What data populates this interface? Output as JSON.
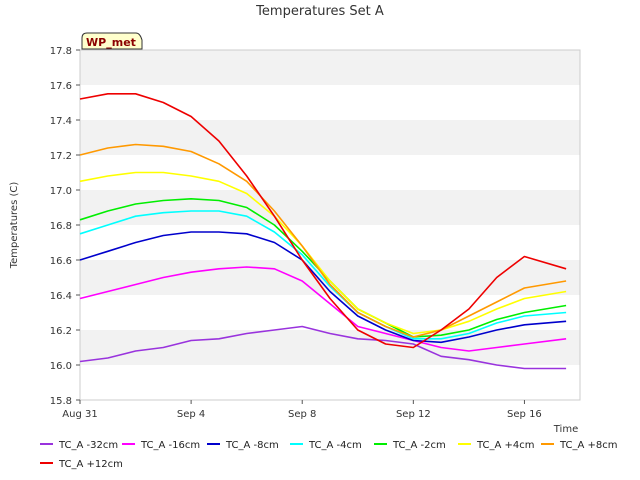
{
  "chart_data": {
    "type": "line",
    "title": "Temperatures Set A",
    "xlabel": "Time",
    "ylabel": "Temperatures (C)",
    "badge": "WP_met",
    "ylim": [
      15.8,
      17.8
    ],
    "yticks": [
      "15.8",
      "16.0",
      "16.2",
      "16.4",
      "16.6",
      "16.8",
      "17.0",
      "17.2",
      "17.4",
      "17.6",
      "17.8"
    ],
    "xlim": [
      "2022-08-31",
      "2022-09-18"
    ],
    "xticks": [
      {
        "date": "2022-08-31",
        "label": "Aug 31"
      },
      {
        "date": "2022-09-04",
        "label": "Sep 4"
      },
      {
        "date": "2022-09-08",
        "label": "Sep 8"
      },
      {
        "date": "2022-09-12",
        "label": "Sep 12"
      },
      {
        "date": "2022-09-16",
        "label": "Sep 16"
      }
    ],
    "grid": "horizontal bands",
    "legend_position": "bottom",
    "x": [
      "2022-08-31",
      "2022-09-01",
      "2022-09-02",
      "2022-09-03",
      "2022-09-04",
      "2022-09-05",
      "2022-09-06",
      "2022-09-07",
      "2022-09-08",
      "2022-09-09",
      "2022-09-10",
      "2022-09-11",
      "2022-09-12",
      "2022-09-13",
      "2022-09-14",
      "2022-09-15",
      "2022-09-16",
      "2022-09-17"
    ],
    "series": [
      {
        "name": "TC_A -32cm",
        "color": "#9933dd",
        "values": [
          16.02,
          16.04,
          16.08,
          16.1,
          16.14,
          16.15,
          16.18,
          16.2,
          16.22,
          16.18,
          16.15,
          16.14,
          16.12,
          16.05,
          16.03,
          16.0,
          15.98,
          15.98
        ]
      },
      {
        "name": "TC_A -16cm",
        "color": "#ff00ff",
        "values": [
          16.38,
          16.42,
          16.46,
          16.5,
          16.53,
          16.55,
          16.56,
          16.55,
          16.48,
          16.35,
          16.22,
          16.18,
          16.14,
          16.1,
          16.08,
          16.1,
          16.12,
          16.15
        ]
      },
      {
        "name": "TC_A -8cm",
        "color": "#0000cc",
        "values": [
          16.6,
          16.65,
          16.7,
          16.74,
          16.76,
          16.76,
          16.75,
          16.7,
          16.6,
          16.42,
          16.28,
          16.2,
          16.14,
          16.13,
          16.16,
          16.2,
          16.23,
          16.25
        ]
      },
      {
        "name": "TC_A -4cm",
        "color": "#00ffff",
        "values": [
          16.75,
          16.8,
          16.85,
          16.87,
          16.88,
          16.88,
          16.85,
          16.76,
          16.63,
          16.45,
          16.3,
          16.22,
          16.15,
          16.15,
          16.18,
          16.24,
          16.28,
          16.3
        ]
      },
      {
        "name": "TC_A -2cm",
        "color": "#00ee00",
        "values": [
          16.83,
          16.88,
          16.92,
          16.94,
          16.95,
          16.94,
          16.9,
          16.8,
          16.65,
          16.48,
          16.32,
          16.24,
          16.16,
          16.17,
          16.2,
          16.26,
          16.3,
          16.34
        ]
      },
      {
        "name": "TC_A +4cm",
        "color": "#ffff00",
        "values": [
          17.05,
          17.08,
          17.1,
          17.1,
          17.08,
          17.05,
          16.98,
          16.85,
          16.68,
          16.48,
          16.32,
          16.24,
          16.18,
          16.2,
          16.25,
          16.32,
          16.38,
          16.42
        ]
      },
      {
        "name": "TC_A +8cm",
        "color": "#ff9900",
        "values": [
          17.2,
          17.24,
          17.26,
          17.25,
          17.22,
          17.15,
          17.05,
          16.88,
          16.68,
          16.46,
          16.3,
          16.22,
          16.16,
          16.2,
          16.28,
          16.36,
          16.44,
          16.48
        ]
      },
      {
        "name": "TC_A +12cm",
        "color": "#ee0000",
        "values": [
          17.52,
          17.55,
          17.55,
          17.5,
          17.42,
          17.28,
          17.08,
          16.85,
          16.6,
          16.38,
          16.2,
          16.12,
          16.1,
          16.2,
          16.32,
          16.5,
          16.62,
          16.55
        ]
      }
    ]
  }
}
